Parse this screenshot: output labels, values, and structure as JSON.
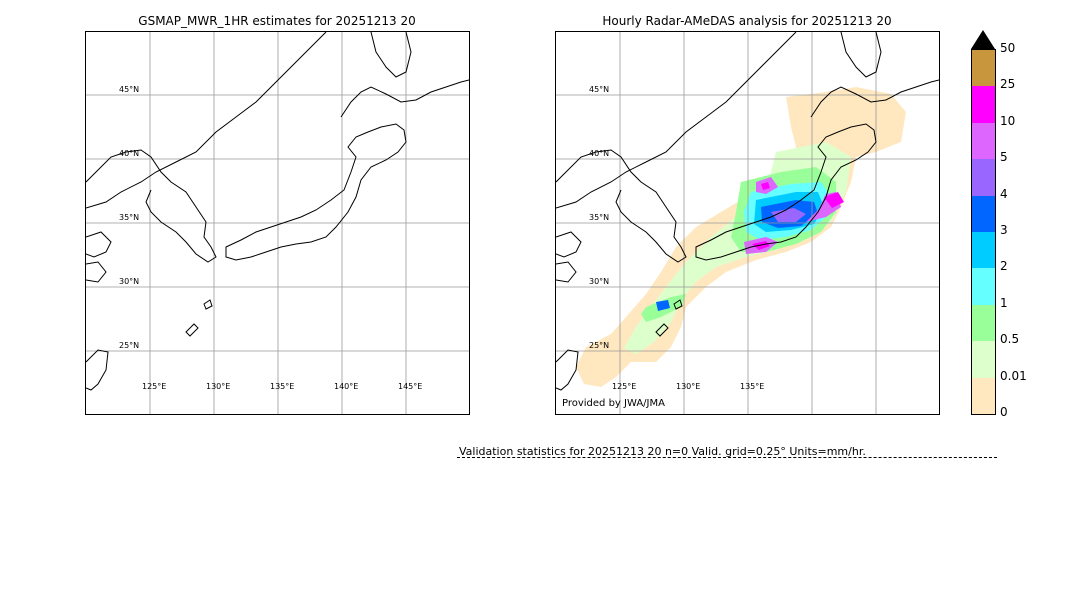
{
  "left_panel": {
    "title": "GSMAP_MWR_1HR estimates for 20251213 20",
    "lat_labels": [
      "45°N",
      "40°N",
      "35°N",
      "30°N",
      "25°N"
    ],
    "lon_labels": [
      "125°E",
      "130°E",
      "135°E",
      "140°E",
      "145°E"
    ]
  },
  "right_panel": {
    "title": "Hourly Radar-AMeDAS analysis for 20251213 20",
    "lat_labels": [
      "45°N",
      "40°N",
      "35°N",
      "30°N",
      "25°N"
    ],
    "lon_labels": [
      "125°E",
      "130°E",
      "135°E"
    ],
    "credit": "Provided by JWA/JMA"
  },
  "colorbar": {
    "labels": [
      "50",
      "25",
      "10",
      "5",
      "4",
      "3",
      "2",
      "1",
      "0.5",
      "0.01",
      "0"
    ],
    "colors": [
      "#c8963c",
      "#ff00ff",
      "#dd66ff",
      "#9966ff",
      "#0066ff",
      "#00ccff",
      "#66ffff",
      "#99ff99",
      "#ddffcc",
      "#ffe8c0"
    ]
  },
  "stats": {
    "text": "Validation statistics for 20251213 20  n=0 Valid. grid=0.25° Units=mm/hr."
  }
}
